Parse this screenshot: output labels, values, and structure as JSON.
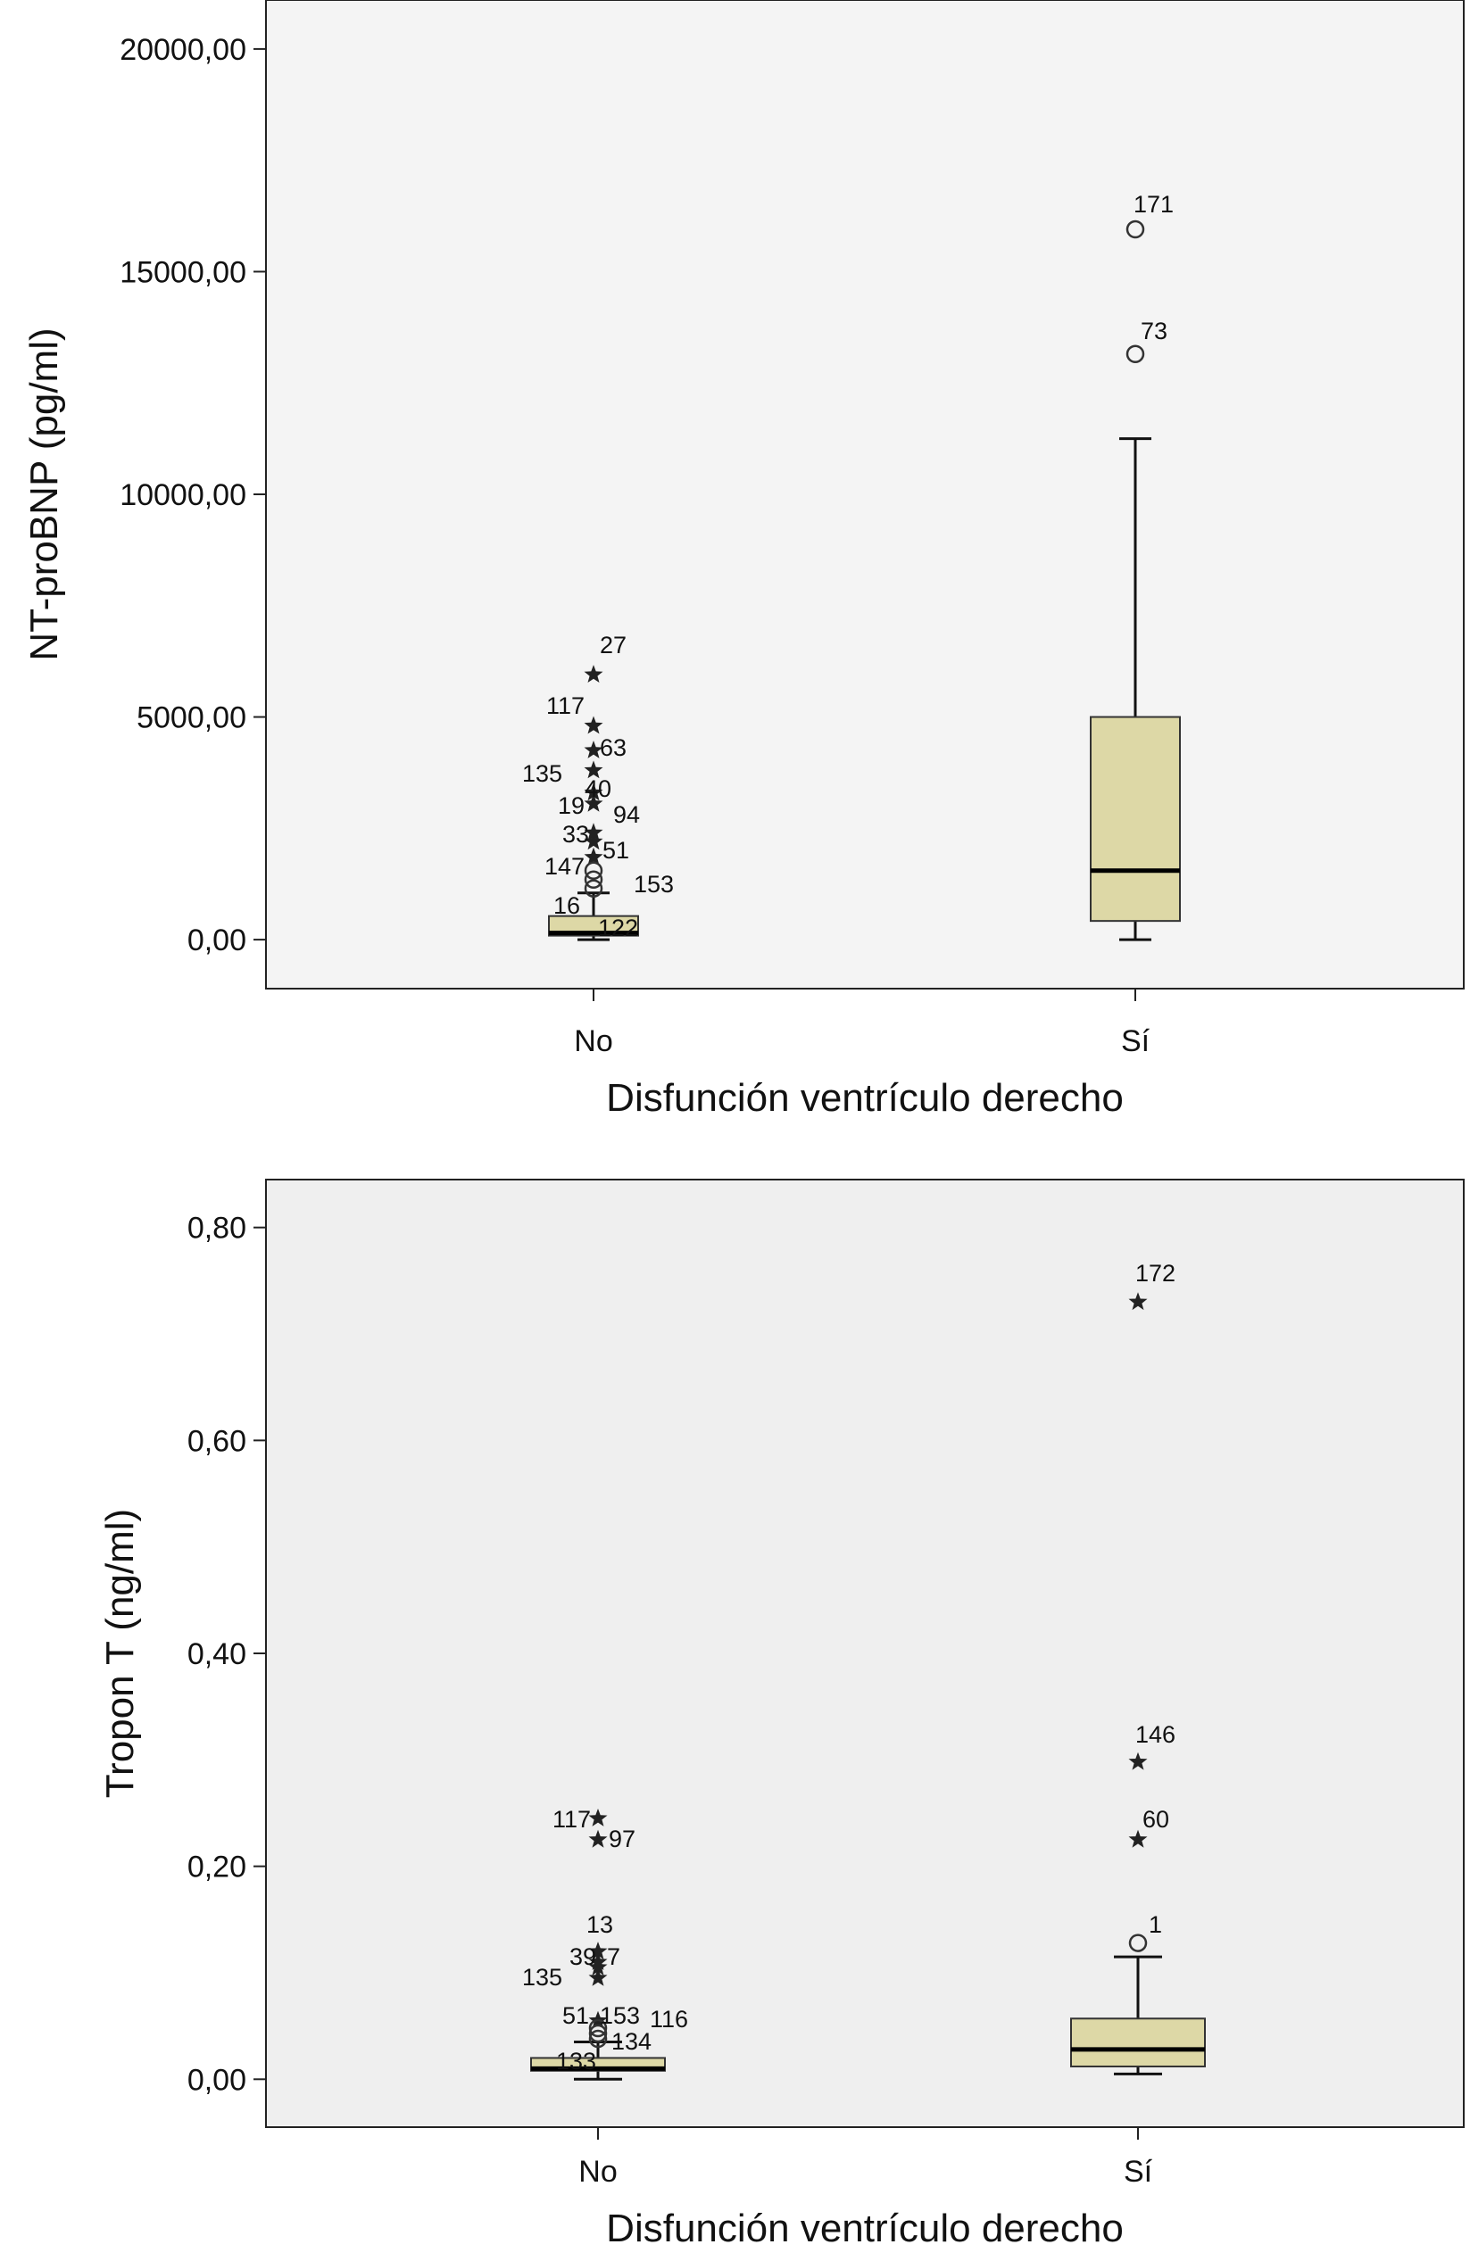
{
  "chart_data": [
    {
      "type": "boxplot",
      "ylabel": "NT-proBNP (pg/ml)",
      "xlabel": "Disfunción ventrículo derecho",
      "categories": [
        "No",
        "Sí"
      ],
      "ylim": [
        -1100,
        21100
      ],
      "yticks": [
        0,
        5000,
        10000,
        15000,
        20000
      ],
      "ytick_labels": [
        "0,00",
        "5000,00",
        "10000,00",
        "15000,00",
        "20000,00"
      ],
      "grid": false,
      "boxes": [
        {
          "category": "No",
          "min": 0,
          "q1": 90,
          "median": 150,
          "q3": 530,
          "max": 1050,
          "outliers": [
            {
              "label": "27",
              "value": 5950,
              "marker": "star"
            },
            {
              "label": "117",
              "value": 4800,
              "marker": "star"
            },
            {
              "label": "63",
              "value": 4250,
              "marker": "star"
            },
            {
              "label": "135",
              "value": 3800,
              "marker": "star"
            },
            {
              "label": "40",
              "value": 3300,
              "marker": "star"
            },
            {
              "label": "19",
              "value": 3050,
              "marker": "star"
            },
            {
              "label": "94",
              "value": 2400,
              "marker": "star"
            },
            {
              "label": "33",
              "value": 2200,
              "marker": "star"
            },
            {
              "label": "51",
              "value": 1850,
              "marker": "star"
            },
            {
              "label": "147",
              "value": 1550,
              "marker": "circle"
            },
            {
              "label": "153",
              "value": 1350,
              "marker": "circle"
            },
            {
              "label": "16",
              "value": 1150,
              "marker": "circle"
            },
            {
              "label": "122",
              "value": 230,
              "marker": "none"
            }
          ]
        },
        {
          "category": "Sí",
          "min": 0,
          "q1": 420,
          "median": 1550,
          "q3": 5000,
          "max": 11250,
          "outliers": [
            {
              "label": "171",
              "value": 15950,
              "marker": "circle"
            },
            {
              "label": "73",
              "value": 13150,
              "marker": "circle"
            }
          ]
        }
      ]
    },
    {
      "type": "boxplot",
      "ylabel": "Tropon T (ng/ml)",
      "xlabel": "Disfunción ventrículo derecho",
      "categories": [
        "No",
        "Sí"
      ],
      "ylim": [
        -0.045,
        0.845
      ],
      "yticks": [
        0,
        0.2,
        0.4,
        0.6,
        0.8
      ],
      "ytick_labels": [
        "0,00",
        "0,20",
        "0,40",
        "0,60",
        "0,80"
      ],
      "grid": false,
      "boxes": [
        {
          "category": "No",
          "min": 0,
          "q1": 0.008,
          "median": 0.01,
          "q3": 0.02,
          "max": 0.035,
          "outliers": [
            {
              "label": "117",
              "value": 0.245,
              "marker": "star"
            },
            {
              "label": "97",
              "value": 0.225,
              "marker": "star"
            },
            {
              "label": "13",
              "value": 0.12,
              "marker": "star"
            },
            {
              "label": "39",
              "value": 0.11,
              "marker": "star"
            },
            {
              "label": "7",
              "value": 0.105,
              "marker": "star"
            },
            {
              "label": "135",
              "value": 0.095,
              "marker": "star"
            },
            {
              "label": "51",
              "value": 0.055,
              "marker": "star"
            },
            {
              "label": "153",
              "value": 0.048,
              "marker": "circle"
            },
            {
              "label": "116",
              "value": 0.043,
              "marker": "circle"
            },
            {
              "label": "134",
              "value": 0.038,
              "marker": "circle"
            },
            {
              "label": "133",
              "value": 0.015,
              "marker": "none"
            }
          ]
        },
        {
          "category": "Sí",
          "min": 0.005,
          "q1": 0.012,
          "median": 0.028,
          "q3": 0.057,
          "max": 0.115,
          "outliers": [
            {
              "label": "172",
              "value": 0.73,
              "marker": "star"
            },
            {
              "label": "146",
              "value": 0.298,
              "marker": "star"
            },
            {
              "label": "60",
              "value": 0.225,
              "marker": "star"
            },
            {
              "label": "1",
              "value": 0.128,
              "marker": "circle"
            }
          ]
        }
      ]
    }
  ]
}
